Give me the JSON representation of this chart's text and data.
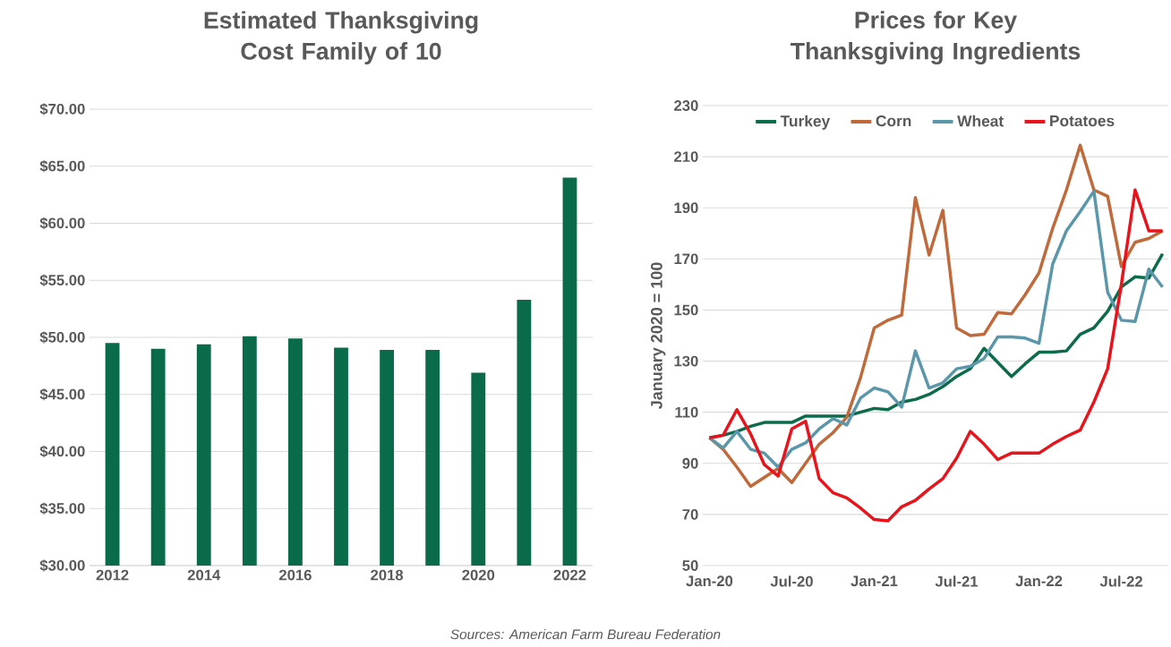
{
  "chart_data": [
    {
      "type": "bar",
      "title": "Estimated Thanksgiving Cost Family of 10",
      "categories": [
        "2012",
        null,
        "2014",
        null,
        "2016",
        null,
        "2018",
        null,
        "2020",
        null,
        "2022"
      ],
      "values": [
        49.5,
        49.0,
        49.4,
        50.1,
        49.9,
        49.1,
        48.9,
        48.9,
        46.9,
        53.3,
        64.0
      ],
      "color": "#0a6b4b",
      "ylim": [
        30,
        70
      ],
      "yticks": [
        {
          "value": 30,
          "label": "$30.00"
        },
        {
          "value": 35,
          "label": "$35.00"
        },
        {
          "value": 40,
          "label": "$40.00"
        },
        {
          "value": 45,
          "label": "$45.00"
        },
        {
          "value": 50,
          "label": "$50.00"
        },
        {
          "value": 55,
          "label": "$55.00"
        },
        {
          "value": 60,
          "label": "$60.00"
        },
        {
          "value": 65,
          "label": "$65.00"
        },
        {
          "value": 70,
          "label": "$70.00"
        }
      ],
      "grid": "y"
    },
    {
      "type": "line",
      "title": "Prices for Key Thanksgiving Ingredients",
      "ylabel": "January 2020 = 100",
      "x": [
        "2020-01",
        "2020-02",
        "2020-03",
        "2020-04",
        "2020-05",
        "2020-06",
        "2020-07",
        "2020-08",
        "2020-09",
        "2020-10",
        "2020-11",
        "2020-12",
        "2021-01",
        "2021-02",
        "2021-03",
        "2021-04",
        "2021-05",
        "2021-06",
        "2021-07",
        "2021-08",
        "2021-09",
        "2021-10",
        "2021-11",
        "2021-12",
        "2022-01",
        "2022-02",
        "2022-03",
        "2022-04",
        "2022-05",
        "2022-06",
        "2022-07",
        "2022-08",
        "2022-09",
        "2022-10"
      ],
      "series": [
        {
          "name": "Turkey",
          "color": "#0b6b4b",
          "values": [
            100,
            101,
            102.5,
            104.5,
            106,
            106,
            106,
            108.5,
            108.5,
            108.5,
            108.5,
            110,
            111.5,
            111,
            114,
            115,
            117,
            120,
            124,
            127,
            135,
            129.5,
            124,
            129,
            133.5,
            133.5,
            134,
            140.5,
            143,
            149.5,
            159,
            163,
            162.5,
            172
          ]
        },
        {
          "name": "Corn",
          "color": "#c0693a",
          "values": [
            100,
            95.5,
            88.5,
            81,
            84.5,
            88,
            82.5,
            90,
            97.5,
            102,
            108,
            123.5,
            143,
            146,
            148,
            194,
            171.5,
            189,
            143,
            140,
            140.5,
            149,
            148.5,
            156,
            164.5,
            182,
            197,
            214.5,
            197,
            194.5,
            167,
            176.5,
            178,
            181
          ]
        },
        {
          "name": "Wheat",
          "color": "#5b97ab",
          "values": [
            100,
            96,
            102.5,
            95.5,
            94,
            88.5,
            95.5,
            98,
            103.5,
            107.5,
            105,
            115.5,
            119.5,
            118,
            112,
            134,
            119.5,
            121.5,
            127,
            128,
            131,
            139.5,
            139.5,
            139,
            137,
            168,
            181,
            188.5,
            196.5,
            157,
            146,
            145.5,
            166,
            159
          ]
        },
        {
          "name": "Potatoes",
          "color": "#e8131b",
          "values": [
            100,
            101,
            111,
            101.5,
            89.5,
            85,
            103.5,
            106.5,
            84,
            78.5,
            76.5,
            72.5,
            68,
            67.5,
            73,
            75.5,
            80,
            84,
            92,
            102.5,
            97.5,
            91.5,
            94,
            94,
            94,
            97.5,
            100.5,
            103,
            114,
            127,
            160,
            197,
            181,
            181
          ]
        }
      ],
      "xlim": [
        "2019-12-17",
        "2022-10-14"
      ],
      "xticks": [
        {
          "value": "2020-01",
          "label": "Jan-20"
        },
        {
          "value": "2020-07",
          "label": "Jul-20"
        },
        {
          "value": "2021-01",
          "label": "Jan-21"
        },
        {
          "value": "2021-07",
          "label": "Jul-21"
        },
        {
          "value": "2022-01",
          "label": "Jan-22"
        },
        {
          "value": "2022-07",
          "label": "Jul-22"
        }
      ],
      "ylim": [
        50,
        230
      ],
      "yticks": [
        50,
        70,
        90,
        110,
        130,
        150,
        170,
        190,
        210,
        230
      ],
      "grid": "y",
      "legend": "top",
      "annotations": [
        "Sources: American Farm Bureau Federation"
      ]
    }
  ]
}
